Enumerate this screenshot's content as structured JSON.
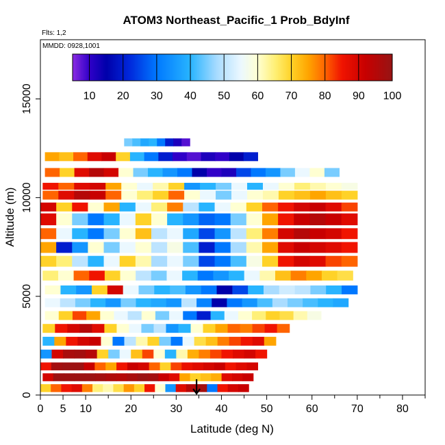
{
  "chart_data": {
    "type": "heatmap",
    "title": "ATOM3 Northeast_Pacific_1 Prob_BdyInf",
    "flights_label": "Flts: 1,2",
    "dates_label": "MMDD: 0928,1001",
    "xlabel": "Latitude (deg N)",
    "ylabel": "Altitude (m)",
    "xlim": [
      0,
      85
    ],
    "ylim": [
      0,
      18000
    ],
    "x_ticks": [
      0,
      5,
      10,
      20,
      30,
      40,
      50,
      60,
      70,
      80
    ],
    "y_ticks": [
      0,
      5000,
      10000,
      15000
    ],
    "colorbar": {
      "range": [
        5,
        100
      ],
      "ticks": [
        10,
        20,
        30,
        40,
        50,
        60,
        70,
        80,
        90,
        100
      ]
    },
    "marker": {
      "latitude": 34.5,
      "altitude_top": 800
    },
    "bands": [
      {
        "alt": 12600,
        "height": 400,
        "lat_start": 18.5,
        "lat_end": 33,
        "values": [
          45,
          42,
          38,
          40,
          30,
          20,
          12,
          8
        ]
      },
      {
        "alt": 11850,
        "height": 450,
        "lat_start": 1,
        "lat_end": 48,
        "values": [
          75,
          72,
          80,
          88,
          92,
          70,
          40,
          30,
          20,
          10,
          8,
          12,
          10,
          15,
          20
        ]
      },
      {
        "alt": 11050,
        "height": 450,
        "lat_start": 1,
        "lat_end": 66,
        "values": [
          80,
          70,
          88,
          95,
          90,
          60,
          45,
          40,
          35,
          30,
          15,
          10,
          12,
          25,
          30,
          35,
          45,
          55,
          60,
          45
        ]
      },
      {
        "alt": 10400,
        "height": 350,
        "lat_start": 0.5,
        "lat_end": 70,
        "values": [
          85,
          80,
          88,
          90,
          75,
          60,
          55,
          62,
          70,
          35,
          40,
          45,
          55,
          40,
          55,
          60,
          65,
          62,
          60,
          58
        ]
      },
      {
        "alt": 9900,
        "height": 450,
        "lat_start": 0.5,
        "lat_end": 70,
        "values": [
          80,
          88,
          95,
          92,
          80,
          60,
          65,
          70,
          80,
          60,
          55,
          45,
          55,
          60,
          62,
          70,
          72,
          75,
          72,
          70
        ]
      },
      {
        "alt": 9300,
        "height": 450,
        "lat_start": 0,
        "lat_end": 70,
        "values": [
          90,
          70,
          85,
          60,
          75,
          40,
          55,
          65,
          78,
          50,
          40,
          55,
          60,
          70,
          80,
          85,
          90,
          92,
          88,
          82
        ]
      },
      {
        "alt": 8600,
        "height": 600,
        "lat_start": 0,
        "lat_end": 70,
        "values": [
          88,
          60,
          45,
          30,
          40,
          55,
          70,
          60,
          40,
          35,
          28,
          30,
          45,
          60,
          75,
          85,
          92,
          95,
          92,
          88
        ]
      },
      {
        "alt": 7900,
        "height": 550,
        "lat_start": 0,
        "lat_end": 70,
        "values": [
          80,
          55,
          40,
          30,
          45,
          60,
          72,
          50,
          55,
          38,
          25,
          35,
          50,
          65,
          78,
          90,
          95,
          92,
          90,
          85
        ]
      },
      {
        "alt": 7200,
        "height": 550,
        "lat_start": 0,
        "lat_end": 70,
        "values": [
          75,
          20,
          35,
          60,
          45,
          55,
          60,
          50,
          58,
          42,
          20,
          30,
          48,
          62,
          75,
          88,
          92,
          90,
          88,
          85
        ]
      },
      {
        "alt": 6500,
        "height": 550,
        "lat_start": 0,
        "lat_end": 70,
        "values": [
          70,
          65,
          50,
          40,
          55,
          70,
          62,
          48,
          55,
          45,
          25,
          30,
          42,
          58,
          70,
          85,
          90,
          88,
          82,
          80
        ]
      },
      {
        "alt": 5800,
        "height": 500,
        "lat_start": 0.5,
        "lat_end": 69,
        "values": [
          65,
          60,
          80,
          85,
          70,
          60,
          50,
          45,
          55,
          40,
          30,
          35,
          40,
          55,
          62,
          72,
          78,
          75,
          70,
          68
        ]
      },
      {
        "alt": 5100,
        "height": 450,
        "lat_start": 1,
        "lat_end": 70,
        "values": [
          60,
          40,
          35,
          70,
          90,
          55,
          45,
          40,
          42,
          35,
          30,
          15,
          25,
          40,
          48,
          52,
          50,
          45,
          40,
          30
        ]
      },
      {
        "alt": 4450,
        "height": 450,
        "lat_start": 1,
        "lat_end": 68,
        "values": [
          55,
          50,
          45,
          40,
          35,
          45,
          40,
          38,
          35,
          50,
          32,
          15,
          30,
          35,
          42,
          48,
          45,
          42,
          40,
          38
        ]
      },
      {
        "alt": 3800,
        "height": 450,
        "lat_start": 1,
        "lat_end": 62,
        "values": [
          60,
          70,
          82,
          75,
          60,
          55,
          50,
          60,
          45,
          55,
          30,
          20,
          40,
          55,
          60,
          65,
          70,
          68,
          62,
          58
        ]
      },
      {
        "alt": 3150,
        "height": 450,
        "lat_start": 0.5,
        "lat_end": 55,
        "values": [
          70,
          85,
          90,
          95,
          88,
          70,
          60,
          55,
          45,
          50,
          35,
          40,
          60,
          70,
          75,
          80,
          78,
          82,
          85,
          80
        ]
      },
      {
        "alt": 2500,
        "height": 450,
        "lat_start": 0.5,
        "lat_end": 52,
        "values": [
          40,
          75,
          85,
          90,
          92,
          60,
          30,
          50,
          62,
          70,
          45,
          30,
          55,
          68,
          72,
          78,
          82,
          85,
          88,
          75
        ]
      },
      {
        "alt": 1850,
        "height": 450,
        "lat_start": 0,
        "lat_end": 50,
        "values": [
          35,
          90,
          97,
          98,
          95,
          70,
          45,
          55,
          72,
          82,
          60,
          40,
          62,
          74,
          78,
          82,
          85,
          88,
          90,
          85
        ]
      },
      {
        "alt": 1250,
        "height": 400,
        "lat_start": 0,
        "lat_end": 48,
        "values": [
          85,
          98,
          99,
          99,
          92,
          80,
          75,
          85,
          92,
          90,
          80,
          70,
          82,
          86,
          88,
          90,
          92,
          85,
          88,
          90
        ]
      },
      {
        "alt": 700,
        "height": 400,
        "lat_start": 0.5,
        "lat_end": 47,
        "values": [
          90,
          99,
          99,
          99,
          99,
          98,
          96,
          95,
          97,
          99,
          98,
          92,
          88,
          75,
          70,
          72,
          74,
          88,
          90,
          92
        ]
      },
      {
        "alt": 150,
        "height": 400,
        "lat_start": 0,
        "lat_end": 46,
        "values": [
          70,
          80,
          85,
          88,
          78,
          65,
          62,
          68,
          76,
          70,
          85,
          60,
          35,
          88,
          95,
          98,
          30,
          85,
          90,
          92
        ]
      }
    ]
  }
}
